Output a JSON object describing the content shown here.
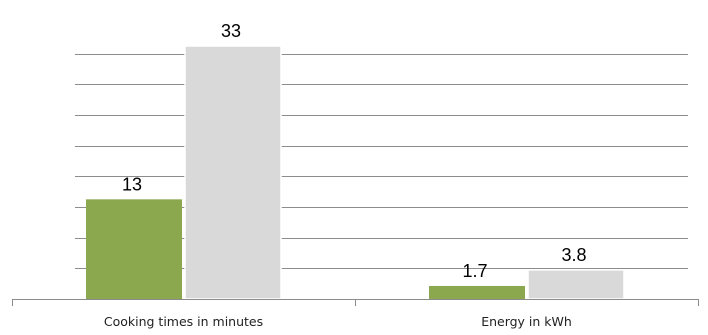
{
  "chart_data": {
    "type": "bar",
    "categories": [
      "Cooking times in minutes",
      "Energy in kWh"
    ],
    "series": [
      {
        "values": [
          13,
          1.7
        ],
        "color": "#8ba84e"
      },
      {
        "values": [
          33,
          3.8
        ],
        "color": "#d9d9d9"
      }
    ],
    "data_labels": [
      [
        "13",
        "1.7"
      ],
      [
        "33",
        "3.8"
      ]
    ],
    "ylim": [
      0,
      36
    ],
    "grid": true,
    "legend": "none",
    "title": "",
    "xlabel": "",
    "ylabel": ""
  }
}
